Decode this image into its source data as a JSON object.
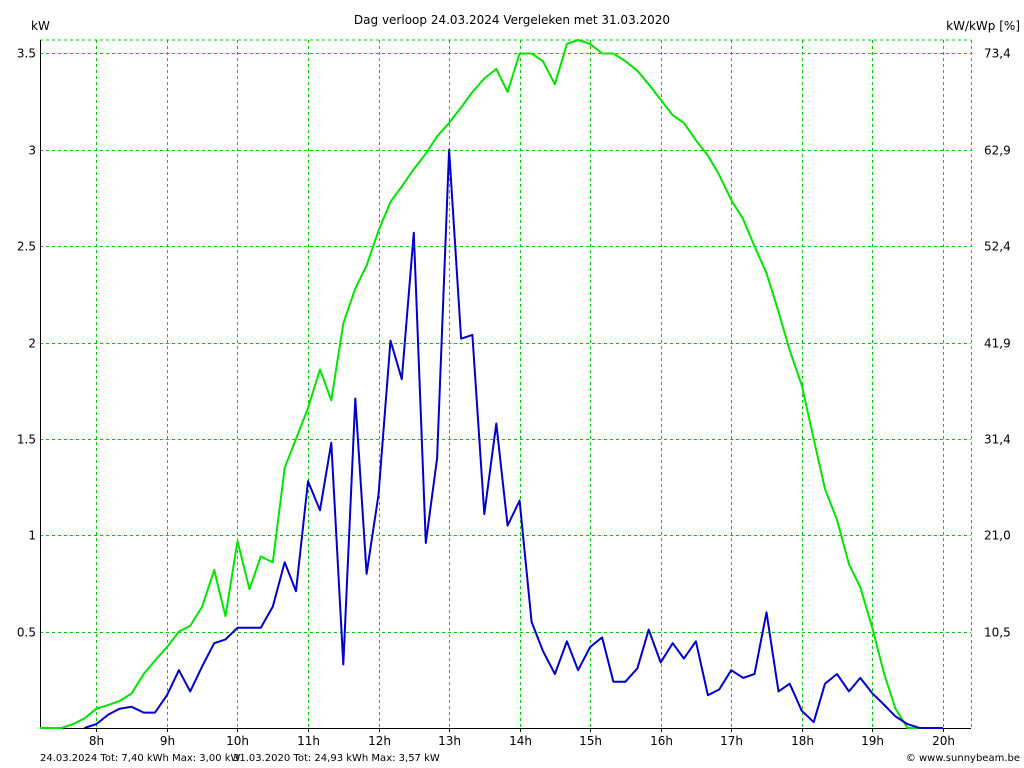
{
  "chart_data": {
    "type": "line",
    "title": "Dag  verloop 24.03.2024   Vergeleken met 31.03.2020",
    "ylabel_left": "kW",
    "ylabel_right": "kW/kWp [%]",
    "x_ticks": [
      "8h",
      "9h",
      "10h",
      "11h",
      "12h",
      "13h",
      "14h",
      "15h",
      "16h",
      "17h",
      "18h",
      "19h",
      "20h"
    ],
    "x_tick_values": [
      8,
      9,
      10,
      11,
      12,
      13,
      14,
      15,
      16,
      17,
      18,
      19,
      20
    ],
    "xlim": [
      7.2,
      20.4
    ],
    "y_ticks": [
      "0.5",
      "1",
      "1.5",
      "2",
      "2.5",
      "3",
      "3.5"
    ],
    "y_tick_values": [
      0.5,
      1,
      1.5,
      2,
      2.5,
      3,
      3.5
    ],
    "ylim": [
      0,
      3.57
    ],
    "y2_ticks": [
      "10,5",
      "21,0",
      "31,4",
      "41,9",
      "52,4",
      "62,9",
      "73,4"
    ],
    "grid": true,
    "colors": {
      "grid": "#00cc00",
      "background": "#ffffff",
      "axis": "#000000"
    },
    "series": [
      {
        "name": "31.03.2020",
        "color": "#00e600",
        "x": [
          7.2,
          7.5,
          7.67,
          7.83,
          8.0,
          8.17,
          8.33,
          8.5,
          8.67,
          8.83,
          9.0,
          9.17,
          9.33,
          9.5,
          9.67,
          9.83,
          10.0,
          10.17,
          10.33,
          10.5,
          10.67,
          10.83,
          11.0,
          11.17,
          11.33,
          11.5,
          11.67,
          11.83,
          12.0,
          12.17,
          12.33,
          12.5,
          12.67,
          12.83,
          13.0,
          13.17,
          13.33,
          13.5,
          13.67,
          13.83,
          14.0,
          14.17,
          14.33,
          14.5,
          14.67,
          14.83,
          15.0,
          15.17,
          15.33,
          15.5,
          15.67,
          15.83,
          16.0,
          16.17,
          16.33,
          16.5,
          16.67,
          16.83,
          17.0,
          17.17,
          17.33,
          17.5,
          17.67,
          17.83,
          18.0,
          18.17,
          18.33,
          18.5,
          18.67,
          18.83,
          19.0,
          19.17,
          19.33,
          19.5,
          19.67,
          19.83,
          20.0
        ],
        "values": [
          0,
          0,
          0.02,
          0.05,
          0.1,
          0.12,
          0.14,
          0.18,
          0.28,
          0.35,
          0.42,
          0.5,
          0.53,
          0.63,
          0.82,
          0.58,
          0.97,
          0.72,
          0.89,
          0.86,
          1.35,
          1.5,
          1.66,
          1.86,
          1.7,
          2.1,
          2.28,
          2.4,
          2.58,
          2.73,
          2.81,
          2.9,
          2.98,
          3.07,
          3.14,
          3.22,
          3.3,
          3.37,
          3.42,
          3.3,
          3.5,
          3.5,
          3.46,
          3.34,
          3.55,
          3.57,
          3.55,
          3.5,
          3.5,
          3.46,
          3.41,
          3.34,
          3.26,
          3.18,
          3.14,
          3.05,
          2.97,
          2.87,
          2.74,
          2.64,
          2.5,
          2.36,
          2.16,
          1.96,
          1.78,
          1.5,
          1.24,
          1.08,
          0.85,
          0.73,
          0.52,
          0.28,
          0.1,
          0,
          0,
          0,
          0
        ]
      },
      {
        "name": "24.03.2024",
        "color": "#0000cc",
        "x": [
          7.83,
          8.0,
          8.17,
          8.33,
          8.5,
          8.67,
          8.83,
          9.0,
          9.17,
          9.33,
          9.5,
          9.67,
          9.83,
          10.0,
          10.17,
          10.33,
          10.5,
          10.67,
          10.83,
          11.0,
          11.17,
          11.33,
          11.5,
          11.67,
          11.83,
          12.0,
          12.17,
          12.33,
          12.5,
          12.67,
          12.83,
          13.0,
          13.17,
          13.33,
          13.5,
          13.67,
          13.83,
          14.0,
          14.17,
          14.33,
          14.5,
          14.67,
          14.83,
          15.0,
          15.17,
          15.33,
          15.5,
          15.67,
          15.83,
          16.0,
          16.17,
          16.33,
          16.5,
          16.67,
          16.83,
          17.0,
          17.17,
          17.33,
          17.5,
          17.67,
          17.83,
          18.0,
          18.17,
          18.33,
          18.5,
          18.67,
          18.83,
          19.0,
          19.17,
          19.33,
          19.5,
          19.67,
          19.83,
          20.0
        ],
        "values": [
          0,
          0.02,
          0.07,
          0.1,
          0.11,
          0.08,
          0.08,
          0.17,
          0.3,
          0.19,
          0.32,
          0.44,
          0.46,
          0.52,
          0.52,
          0.52,
          0.63,
          0.86,
          0.71,
          1.28,
          1.13,
          1.48,
          0.33,
          1.71,
          0.8,
          1.21,
          2.01,
          1.81,
          2.57,
          0.96,
          1.4,
          3.0,
          2.02,
          2.04,
          1.11,
          1.58,
          1.05,
          1.18,
          0.55,
          0.4,
          0.28,
          0.45,
          0.3,
          0.42,
          0.47,
          0.24,
          0.24,
          0.31,
          0.51,
          0.34,
          0.44,
          0.36,
          0.45,
          0.17,
          0.2,
          0.3,
          0.26,
          0.28,
          0.6,
          0.19,
          0.23,
          0.09,
          0.03,
          0.23,
          0.28,
          0.19,
          0.26,
          0.18,
          0.12,
          0.06,
          0.02,
          0,
          0,
          0
        ]
      }
    ],
    "legend_lines": [
      {
        "text": "24.03.2024 Tot: 7,40 kWh Max: 3,00 kW",
        "color": "#0000cc"
      },
      {
        "text": "31.03.2020 Tot: 24,93 kWh Max: 3,57 kW",
        "color": "#00cc00"
      }
    ],
    "footer": "© www.sunnybeam.be"
  }
}
